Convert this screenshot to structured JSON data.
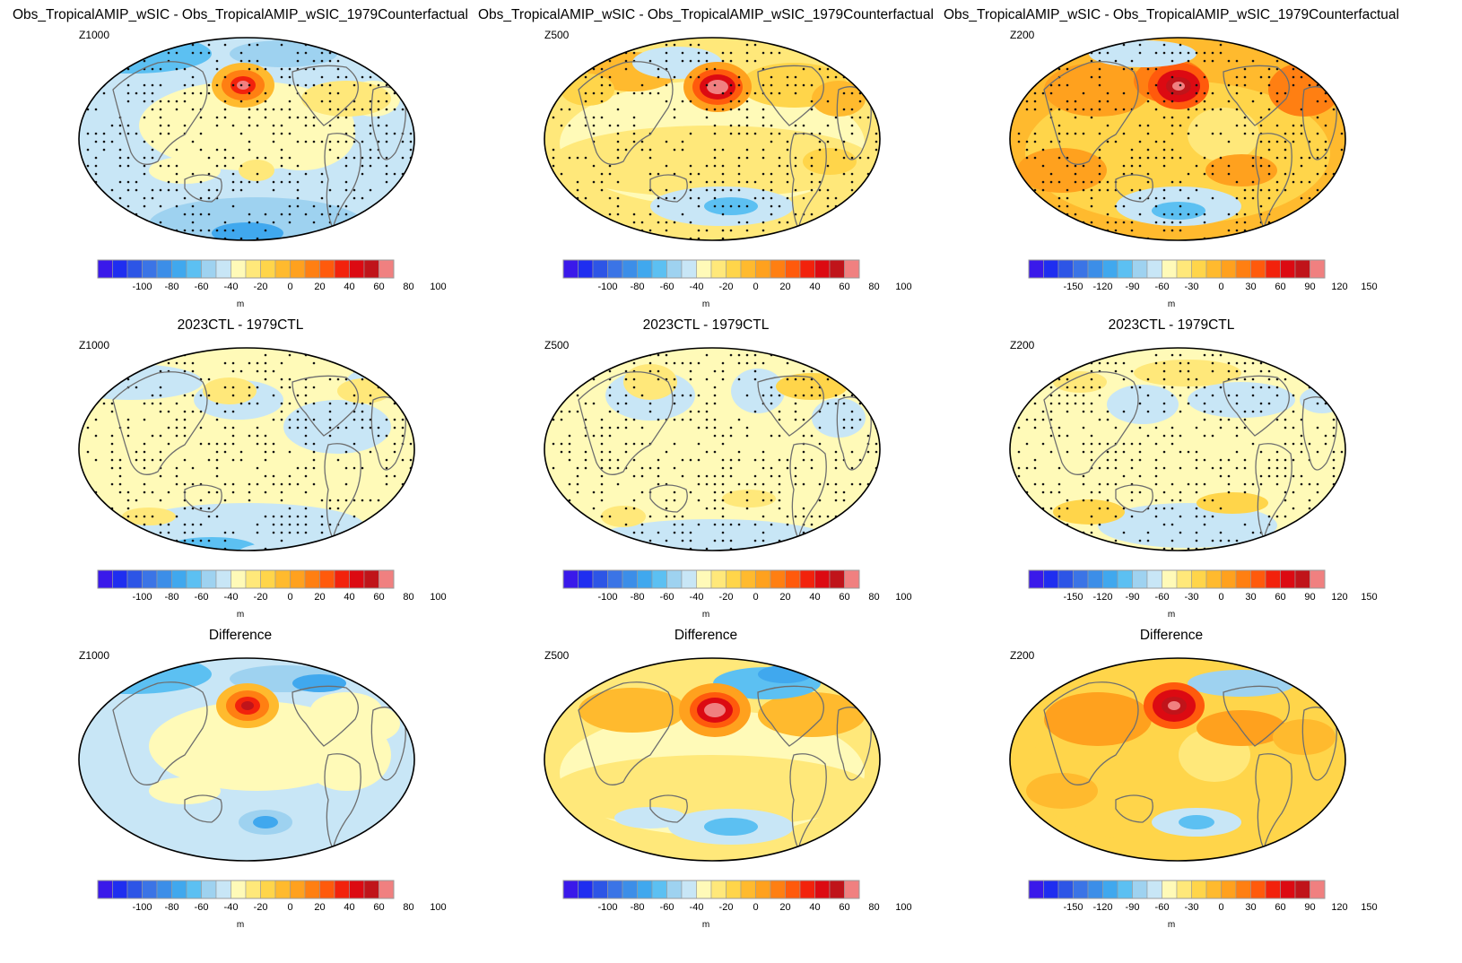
{
  "colorbar_colors": [
    "#3a19ea",
    "#1f2ef0",
    "#2d55e6",
    "#3b74e6",
    "#3c8ee8",
    "#40a8ee",
    "#5cc0f2",
    "#9ed2f0",
    "#c8e6f6",
    "#fffab8",
    "#ffe87a",
    "#ffd54a",
    "#ffba2e",
    "#ffa11e",
    "#ff7f12",
    "#ff5a0c",
    "#f2220c",
    "#dc0a12",
    "#c0141a",
    "#f08080"
  ],
  "colorbar_ticks": {
    "m100": [
      "-100",
      "-80",
      "-60",
      "-40",
      "-20",
      "0",
      "20",
      "40",
      "60",
      "80",
      "100"
    ],
    "m150": [
      "-150",
      "-120",
      "-90",
      "-60",
      "-30",
      "0",
      "30",
      "60",
      "90",
      "120",
      "150"
    ]
  },
  "unit": "m",
  "panels": [
    {
      "title": "Obs_TropicalAMIP_wSIC - Obs_TropicalAMIP_wSIC_1979Counterfactual",
      "var": "Z1000",
      "scale": "m100",
      "style": "exp1000"
    },
    {
      "title": "Obs_TropicalAMIP_wSIC - Obs_TropicalAMIP_wSIC_1979Counterfactual",
      "var": "Z500",
      "scale": "m100",
      "style": "exp500"
    },
    {
      "title": "Obs_TropicalAMIP_wSIC - Obs_TropicalAMIP_wSIC_1979Counterfactual",
      "var": "Z200",
      "scale": "m150",
      "style": "exp200"
    },
    {
      "title": "2023CTL - 1979CTL",
      "var": "Z1000",
      "scale": "m100",
      "style": "ctl1000"
    },
    {
      "title": "2023CTL - 1979CTL",
      "var": "Z500",
      "scale": "m100",
      "style": "ctl500"
    },
    {
      "title": "2023CTL - 1979CTL",
      "var": "Z200",
      "scale": "m150",
      "style": "ctl200"
    },
    {
      "title": "Difference",
      "var": "Z1000",
      "scale": "m100",
      "style": "dif1000"
    },
    {
      "title": "Difference",
      "var": "Z500",
      "scale": "m100",
      "style": "dif500"
    },
    {
      "title": "Difference",
      "var": "Z200",
      "scale": "m150",
      "style": "dif200"
    }
  ]
}
